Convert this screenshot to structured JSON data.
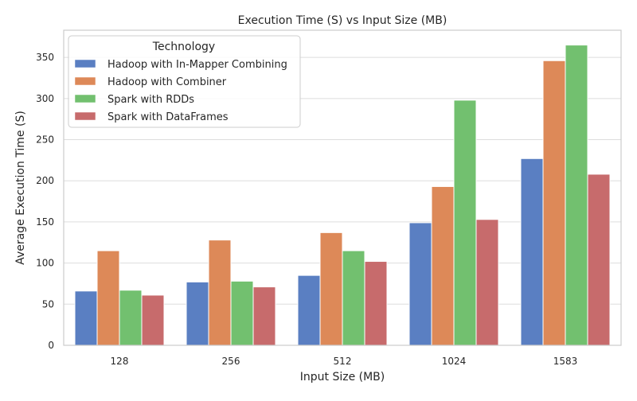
{
  "chart_data": {
    "type": "bar",
    "title": "Execution Time (S) vs Input Size (MB)",
    "xlabel": "Input Size (MB)",
    "ylabel": "Average Execution Time (S)",
    "categories": [
      "128",
      "256",
      "512",
      "1024",
      "1583"
    ],
    "ylim": [
      0,
      383
    ],
    "yticks": [
      0,
      50,
      100,
      150,
      200,
      250,
      300,
      350
    ],
    "grid": true,
    "legend": {
      "title": "Technology",
      "placement": "top-left"
    },
    "series": [
      {
        "name": "Hadoop with In-Mapper Combining",
        "color": "#5a7fc2",
        "values": [
          66,
          77,
          85,
          149,
          227
        ]
      },
      {
        "name": "Hadoop with Combiner",
        "color": "#dd8958",
        "values": [
          115,
          128,
          137,
          193,
          346
        ]
      },
      {
        "name": "Spark with RDDs",
        "color": "#72c06f",
        "values": [
          67,
          78,
          115,
          298,
          365
        ]
      },
      {
        "name": "Spark with DataFrames",
        "color": "#c76b6c",
        "values": [
          61,
          71,
          102,
          153,
          208
        ]
      }
    ]
  }
}
